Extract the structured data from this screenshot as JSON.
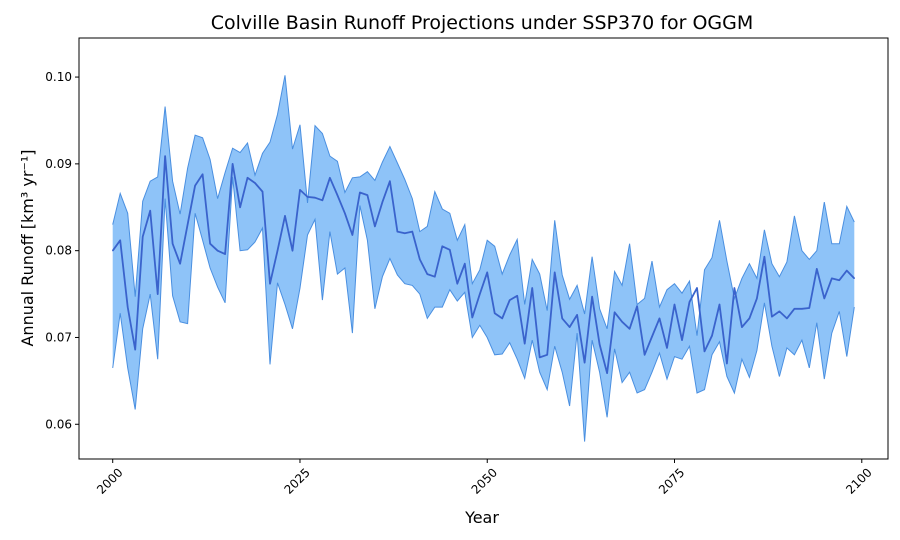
{
  "chart_data": {
    "type": "area",
    "title": "Colville Basin Runoff Projections under SSP370 for OGGM",
    "xlabel": "Year",
    "ylabel": "Annual Runoff [km³ yr⁻¹]",
    "xlim": [
      1995.5,
      2103.5
    ],
    "ylim": [
      0.056,
      0.1045
    ],
    "x_ticks": [
      2000,
      2025,
      2050,
      2075,
      2100
    ],
    "x_tick_labels": [
      "2000",
      "2025",
      "2050",
      "2075",
      "2100"
    ],
    "y_ticks": [
      0.06,
      0.07,
      0.08,
      0.09,
      0.1
    ],
    "y_tick_labels": [
      "0.06",
      "0.07",
      "0.08",
      "0.09",
      "0.10"
    ],
    "grid": false,
    "colors": {
      "band_fill": "#8ec3f8",
      "band_edge": "#4a8fe0",
      "mean_line": "#3a63cc"
    },
    "x": [
      2000,
      2001,
      2002,
      2003,
      2004,
      2005,
      2006,
      2007,
      2008,
      2009,
      2010,
      2011,
      2012,
      2013,
      2014,
      2015,
      2016,
      2017,
      2018,
      2019,
      2020,
      2021,
      2022,
      2023,
      2024,
      2025,
      2026,
      2027,
      2028,
      2029,
      2030,
      2031,
      2032,
      2033,
      2034,
      2035,
      2036,
      2037,
      2038,
      2039,
      2040,
      2041,
      2042,
      2043,
      2044,
      2045,
      2046,
      2047,
      2048,
      2049,
      2050,
      2051,
      2052,
      2053,
      2054,
      2055,
      2056,
      2057,
      2058,
      2059,
      2060,
      2061,
      2062,
      2063,
      2064,
      2065,
      2066,
      2067,
      2068,
      2069,
      2070,
      2071,
      2072,
      2073,
      2074,
      2075,
      2076,
      2077,
      2078,
      2079,
      2080,
      2081,
      2082,
      2083,
      2084,
      2085,
      2086,
      2087,
      2088,
      2089,
      2090,
      2091,
      2092,
      2093,
      2094,
      2095,
      2096,
      2097,
      2098,
      2099
    ],
    "series": [
      {
        "role": "upper",
        "values": [
          0.083,
          0.0866,
          0.0843,
          0.0747,
          0.0857,
          0.088,
          0.0885,
          0.0966,
          0.088,
          0.0842,
          0.0895,
          0.0933,
          0.093,
          0.0905,
          0.086,
          0.089,
          0.0918,
          0.0913,
          0.0924,
          0.0887,
          0.0912,
          0.0925,
          0.0957,
          0.1002,
          0.0917,
          0.0945,
          0.0855,
          0.0944,
          0.0935,
          0.0909,
          0.0903,
          0.0867,
          0.0884,
          0.0885,
          0.0891,
          0.0881,
          0.0902,
          0.092,
          0.0901,
          0.0882,
          0.086,
          0.0822,
          0.0828,
          0.0868,
          0.0848,
          0.0843,
          0.0812,
          0.083,
          0.0762,
          0.0778,
          0.0812,
          0.0805,
          0.0773,
          0.0795,
          0.0813,
          0.0738,
          0.079,
          0.0773,
          0.0731,
          0.0835,
          0.0772,
          0.0744,
          0.076,
          0.0727,
          0.0793,
          0.0733,
          0.071,
          0.0776,
          0.076,
          0.0808,
          0.0738,
          0.0745,
          0.0788,
          0.0735,
          0.0755,
          0.0762,
          0.0751,
          0.0765,
          0.0702,
          0.0778,
          0.0792,
          0.0835,
          0.0788,
          0.0745,
          0.0768,
          0.0785,
          0.0768,
          0.0824,
          0.0785,
          0.077,
          0.0787,
          0.084,
          0.08,
          0.079,
          0.08,
          0.0856,
          0.0808,
          0.0808,
          0.0851,
          0.0833
        ]
      },
      {
        "role": "mean",
        "values": [
          0.08,
          0.0812,
          0.0735,
          0.0686,
          0.0816,
          0.0846,
          0.075,
          0.0909,
          0.0808,
          0.0785,
          0.083,
          0.0875,
          0.0888,
          0.0808,
          0.08,
          0.0796,
          0.09,
          0.085,
          0.0884,
          0.0878,
          0.0868,
          0.0762,
          0.08,
          0.084,
          0.08,
          0.087,
          0.0862,
          0.0861,
          0.0858,
          0.0884,
          0.0864,
          0.0843,
          0.0818,
          0.0867,
          0.0864,
          0.0828,
          0.0856,
          0.088,
          0.0822,
          0.082,
          0.0822,
          0.079,
          0.0773,
          0.077,
          0.0805,
          0.0801,
          0.0762,
          0.0785,
          0.0723,
          0.075,
          0.0775,
          0.0728,
          0.0722,
          0.0743,
          0.0748,
          0.0693,
          0.0757,
          0.0677,
          0.068,
          0.0775,
          0.0722,
          0.0712,
          0.0726,
          0.0671,
          0.0747,
          0.0692,
          0.0659,
          0.0729,
          0.0718,
          0.071,
          0.0736,
          0.068,
          0.0701,
          0.0722,
          0.0688,
          0.0738,
          0.0697,
          0.0741,
          0.0757,
          0.0684,
          0.0702,
          0.0738,
          0.067,
          0.0757,
          0.0712,
          0.0722,
          0.0745,
          0.0793,
          0.0724,
          0.073,
          0.0722,
          0.0733,
          0.0733,
          0.0734,
          0.0779,
          0.0745,
          0.0768,
          0.0766,
          0.0777,
          0.0768
        ]
      },
      {
        "role": "lower",
        "values": [
          0.0665,
          0.0728,
          0.0665,
          0.0617,
          0.071,
          0.075,
          0.0675,
          0.086,
          0.0748,
          0.0718,
          0.0716,
          0.0843,
          0.0812,
          0.078,
          0.0758,
          0.074,
          0.0885,
          0.08,
          0.0801,
          0.081,
          0.0826,
          0.0669,
          0.0763,
          0.0738,
          0.071,
          0.0757,
          0.0818,
          0.0836,
          0.0743,
          0.0822,
          0.0773,
          0.078,
          0.0705,
          0.0852,
          0.0812,
          0.0733,
          0.077,
          0.0791,
          0.0772,
          0.0762,
          0.076,
          0.075,
          0.0722,
          0.0735,
          0.0735,
          0.0755,
          0.0742,
          0.0752,
          0.07,
          0.0714,
          0.07,
          0.068,
          0.0681,
          0.0694,
          0.0675,
          0.0653,
          0.0697,
          0.066,
          0.064,
          0.069,
          0.066,
          0.0621,
          0.0705,
          0.058,
          0.0697,
          0.066,
          0.0608,
          0.0687,
          0.0648,
          0.066,
          0.0636,
          0.064,
          0.066,
          0.0682,
          0.0652,
          0.0678,
          0.0675,
          0.069,
          0.0636,
          0.064,
          0.068,
          0.0695,
          0.0655,
          0.0636,
          0.0675,
          0.0654,
          0.0685,
          0.074,
          0.069,
          0.0655,
          0.0688,
          0.068,
          0.0697,
          0.0665,
          0.0717,
          0.0652,
          0.0705,
          0.073,
          0.0678,
          0.0735
        ]
      }
    ]
  }
}
